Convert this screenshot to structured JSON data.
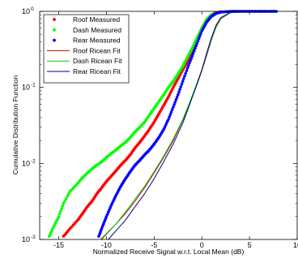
{
  "chart_data": {
    "type": "line",
    "title": "",
    "xlabel": "Normalized Receive Signal w.r.t. Local Mean (dB)",
    "ylabel": "Cumulative Distribution Function",
    "xlim": [
      -17,
      10
    ],
    "ylim": [
      0.001,
      1
    ],
    "yscale": "log",
    "grid": false,
    "legend_position": "top-left",
    "x_ticks": [
      -15,
      -10,
      -5,
      0,
      5,
      10
    ],
    "x_tick_labels": [
      "-15",
      "-10",
      "-5",
      "0",
      "5",
      "10"
    ],
    "y_ticks": [
      0.001,
      0.01,
      0.1,
      1
    ],
    "y_tick_labels": [
      {
        "base": "10",
        "exp": "-3"
      },
      {
        "base": "10",
        "exp": "-2"
      },
      {
        "base": "10",
        "exp": "-1"
      },
      {
        "base": "10",
        "exp": "0"
      }
    ],
    "series": [
      {
        "name": "Roof Measured",
        "style": "markers",
        "color": "#ff0000",
        "x": [
          -14.5,
          -13.8,
          -13.0,
          -12.5,
          -12.0,
          -11.5,
          -11.0,
          -10.5,
          -10.0,
          -9.5,
          -9.0,
          -8.5,
          -8.0,
          -7.5,
          -7.0,
          -6.5,
          -6.0,
          -5.5,
          -5.0,
          -4.5,
          -4.0,
          -3.5,
          -3.0,
          -2.5,
          -2.0,
          -1.5,
          -1.0,
          -0.5,
          0.0,
          0.5,
          1.0,
          1.5,
          2.0,
          3.0,
          4.0,
          5.0,
          6.0,
          6.8
        ],
        "y": [
          0.0011,
          0.0014,
          0.0018,
          0.0022,
          0.0027,
          0.0032,
          0.004,
          0.0048,
          0.0058,
          0.0068,
          0.008,
          0.0095,
          0.011,
          0.013,
          0.016,
          0.019,
          0.023,
          0.028,
          0.035,
          0.045,
          0.058,
          0.075,
          0.1,
          0.13,
          0.17,
          0.22,
          0.3,
          0.42,
          0.6,
          0.78,
          0.9,
          0.96,
          0.985,
          0.997,
          0.999,
          1.0,
          1.0,
          1.0
        ]
      },
      {
        "name": "Dash Measured",
        "style": "markers",
        "color": "#00ff00",
        "x": [
          -16.0,
          -15.5,
          -15.0,
          -14.5,
          -13.8,
          -13.0,
          -12.5,
          -12.0,
          -11.5,
          -11.0,
          -10.5,
          -10.0,
          -9.5,
          -9.0,
          -8.5,
          -8.0,
          -7.5,
          -7.0,
          -6.5,
          -6.0,
          -5.5,
          -5.0,
          -4.5,
          -4.0,
          -3.5,
          -3.0,
          -2.5,
          -2.0,
          -1.5,
          -1.0,
          -0.5,
          0.0,
          0.5,
          1.0,
          2.0,
          3.0,
          4.0,
          5.0,
          6.0,
          7.0,
          7.8
        ],
        "y": [
          0.0011,
          0.0015,
          0.002,
          0.003,
          0.0043,
          0.0055,
          0.0065,
          0.0075,
          0.0085,
          0.0095,
          0.0105,
          0.012,
          0.0135,
          0.015,
          0.017,
          0.019,
          0.022,
          0.026,
          0.03,
          0.035,
          0.043,
          0.053,
          0.065,
          0.08,
          0.1,
          0.12,
          0.15,
          0.19,
          0.25,
          0.33,
          0.45,
          0.6,
          0.78,
          0.9,
          0.98,
          0.996,
          0.999,
          1.0,
          1.0,
          1.0,
          1.0
        ]
      },
      {
        "name": "Rear Measured",
        "style": "markers",
        "color": "#0000ff",
        "x": [
          -10.8,
          -10.4,
          -10.0,
          -9.5,
          -9.0,
          -8.5,
          -8.0,
          -7.5,
          -7.0,
          -6.5,
          -6.0,
          -5.5,
          -5.0,
          -4.5,
          -4.0,
          -3.5,
          -3.0,
          -2.5,
          -2.0,
          -1.5,
          -1.0,
          -0.5,
          0.0,
          0.5,
          1.0,
          1.5,
          2.0,
          3.0,
          4.0,
          5.0,
          6.0,
          7.0,
          7.8
        ],
        "y": [
          0.0011,
          0.0015,
          0.002,
          0.0028,
          0.0038,
          0.005,
          0.0063,
          0.0078,
          0.0095,
          0.011,
          0.013,
          0.015,
          0.018,
          0.022,
          0.028,
          0.038,
          0.055,
          0.08,
          0.12,
          0.18,
          0.26,
          0.38,
          0.55,
          0.72,
          0.86,
          0.94,
          0.98,
          0.996,
          0.999,
          1.0,
          1.0,
          1.0,
          1.0
        ]
      },
      {
        "name": "Roof Ricean Fit",
        "style": "line",
        "color": "#cc0000",
        "x": [
          -10.6,
          -9,
          -8,
          -7,
          -6,
          -5,
          -4,
          -3,
          -2,
          -1.5,
          -1,
          -0.5,
          0,
          0.5,
          1,
          1.5,
          2,
          3,
          4,
          5,
          6,
          7,
          8
        ],
        "y": [
          0.001,
          0.0016,
          0.0022,
          0.0032,
          0.0048,
          0.0075,
          0.012,
          0.02,
          0.037,
          0.052,
          0.075,
          0.11,
          0.165,
          0.26,
          0.42,
          0.62,
          0.8,
          0.96,
          0.995,
          0.9995,
          1.0,
          1.0,
          1.0
        ]
      },
      {
        "name": "Dash Ricean Fit",
        "style": "line",
        "color": "#00cc00",
        "x": [
          -10.5,
          -9,
          -8,
          -7,
          -6,
          -5,
          -4,
          -3,
          -2,
          -1.5,
          -1,
          -0.5,
          0,
          0.5,
          1,
          1.5,
          2,
          3,
          4,
          5,
          6,
          7,
          8
        ],
        "y": [
          0.001,
          0.0016,
          0.0023,
          0.0034,
          0.005,
          0.0078,
          0.0125,
          0.021,
          0.038,
          0.054,
          0.078,
          0.115,
          0.17,
          0.27,
          0.43,
          0.63,
          0.81,
          0.96,
          0.995,
          0.9995,
          1.0,
          1.0,
          1.0
        ]
      },
      {
        "name": "Rear Ricean Fit",
        "style": "line",
        "color": "#00008b",
        "x": [
          -9.8,
          -9,
          -8,
          -7,
          -6,
          -5,
          -4,
          -3,
          -2,
          -1.5,
          -1,
          -0.5,
          0,
          0.5,
          1,
          1.5,
          2,
          3,
          4,
          5,
          6,
          7,
          8
        ],
        "y": [
          0.001,
          0.0013,
          0.0018,
          0.0027,
          0.004,
          0.0063,
          0.0105,
          0.018,
          0.034,
          0.05,
          0.074,
          0.11,
          0.17,
          0.28,
          0.45,
          0.66,
          0.83,
          0.97,
          0.996,
          0.9996,
          1.0,
          1.0,
          1.0
        ]
      }
    ]
  }
}
